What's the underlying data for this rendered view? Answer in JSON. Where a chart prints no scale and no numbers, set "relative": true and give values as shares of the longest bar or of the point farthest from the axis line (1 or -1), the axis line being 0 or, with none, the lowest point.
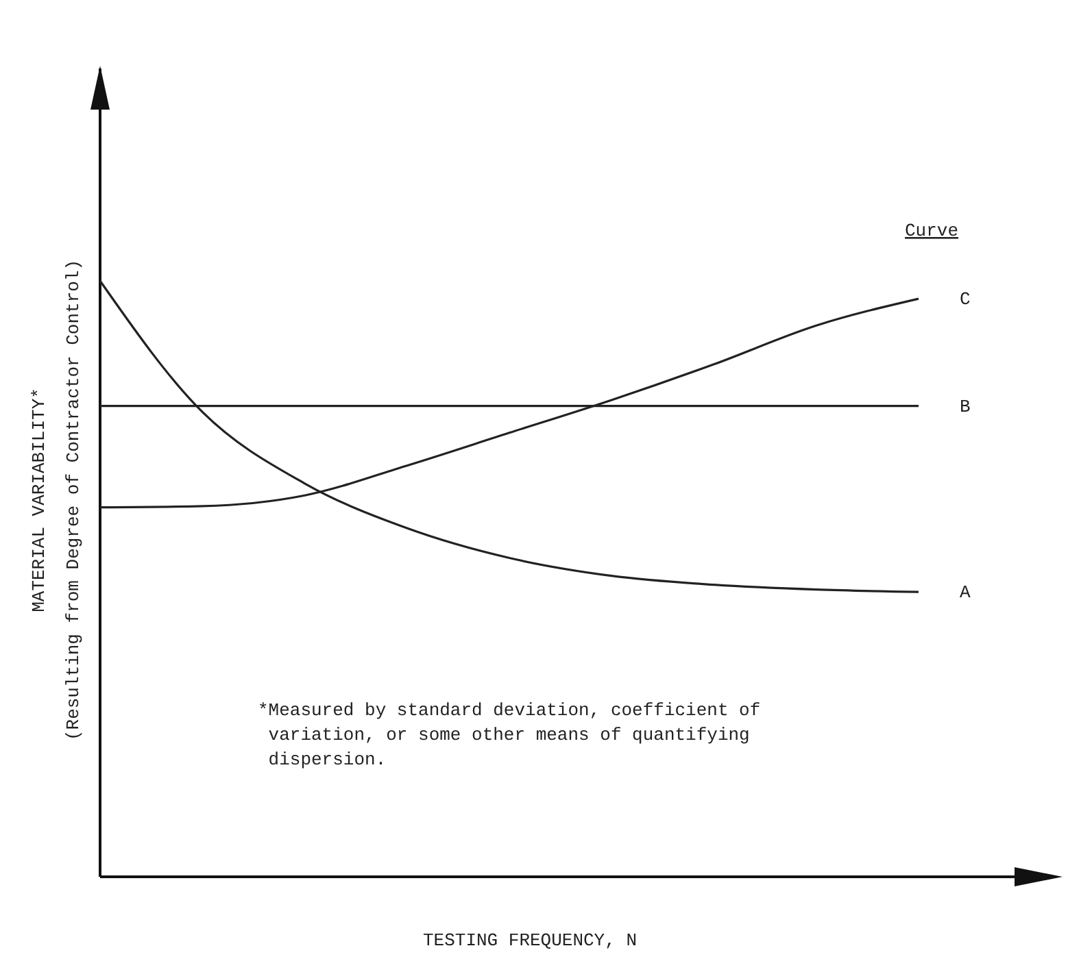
{
  "chart_data": {
    "type": "line",
    "relative": true,
    "xlabel": "TESTING FREQUENCY, N",
    "ylabel": "MATERIAL VARIABILITY*\n(Resulting from Degree of Contractor Control)",
    "legend_title": "Curve",
    "categories": [
      null,
      null,
      null,
      null,
      null,
      null,
      null,
      null,
      null
    ],
    "series": [
      {
        "name": "A",
        "color": "#222222",
        "values": [
          1.0,
          0.78,
          0.66,
          0.585,
          0.535,
          0.505,
          0.49,
          0.482,
          0.478
        ]
      },
      {
        "name": "B",
        "color": "#222222",
        "values": [
          0.79,
          0.79,
          0.79,
          0.79,
          0.79,
          0.79,
          0.79,
          0.79,
          0.79
        ]
      },
      {
        "name": "C",
        "color": "#222222",
        "values": [
          0.62,
          0.622,
          0.64,
          0.69,
          0.745,
          0.8,
          0.86,
          0.925,
          0.97
        ]
      }
    ],
    "annotations": [
      "*Measured by standard deviation, coefficient of\n variation, or some other means of quantifying\n dispersion."
    ],
    "marker": "none",
    "line_style": "solid",
    "grid": false
  }
}
